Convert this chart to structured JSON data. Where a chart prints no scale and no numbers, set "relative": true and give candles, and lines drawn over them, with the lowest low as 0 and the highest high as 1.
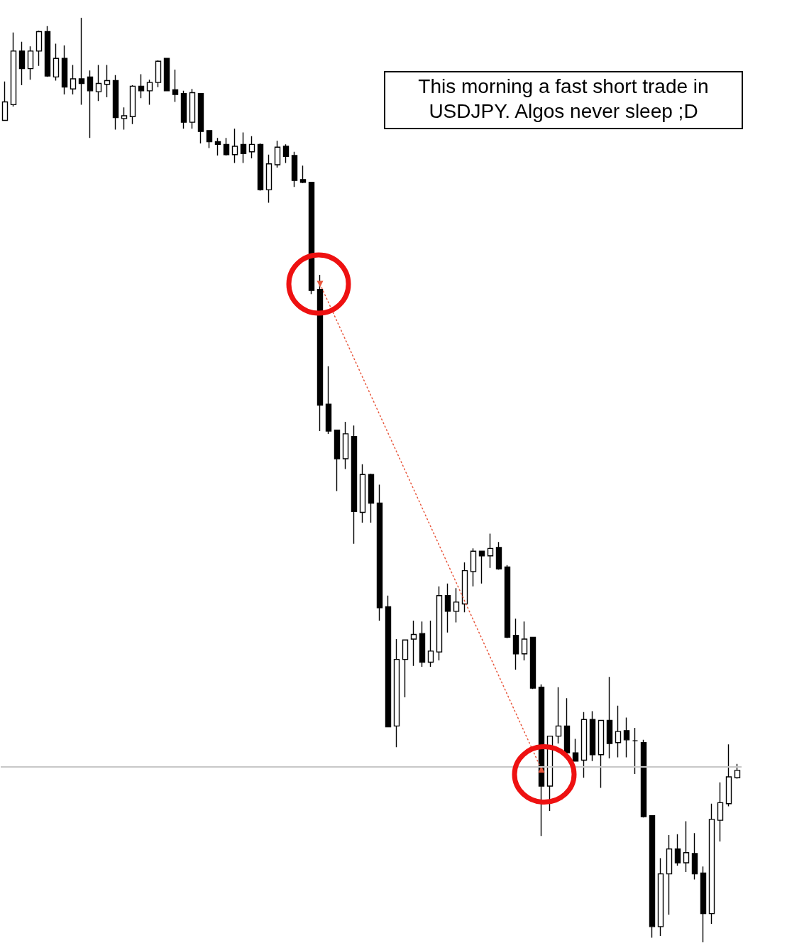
{
  "chart_data": {
    "type": "candlestick",
    "relative": true,
    "color": "#000000",
    "annotations": [
      "This morning a fast short trade in USDJPY. Algos never sleep ;D"
    ],
    "ref_lines": [
      {
        "axis": "y",
        "value": 0.187,
        "color": "#c8c8c8"
      }
    ],
    "series": [
      {
        "type": "line",
        "color": "#e8553a",
        "line_style": "dotted",
        "marker": "triangle",
        "values": [
          null,
          null,
          null,
          null,
          null,
          null,
          null,
          null,
          null,
          null,
          null,
          null,
          null,
          null,
          null,
          null,
          null,
          null,
          null,
          null,
          null,
          null,
          null,
          null,
          null,
          null,
          null,
          null,
          null,
          null,
          null,
          null,
          null,
          null,
          null,
          null,
          null,
          0.712,
          null,
          null,
          null,
          null,
          null,
          null,
          null,
          null,
          null,
          null,
          null,
          null,
          null,
          null,
          null,
          null,
          null,
          null,
          null,
          null,
          null,
          null,
          null,
          null,
          null,
          0.187,
          null,
          null,
          null,
          null,
          null,
          null,
          null,
          null,
          null,
          null,
          null,
          null,
          null,
          null,
          null,
          null,
          null,
          null,
          null,
          null,
          null,
          null,
          null
        ]
      }
    ],
    "categories": [
      null,
      null,
      null,
      null,
      null,
      null,
      null,
      null,
      null,
      null,
      null,
      null,
      null,
      null,
      null,
      null,
      null,
      null,
      null,
      null,
      null,
      null,
      null,
      null,
      null,
      null,
      null,
      null,
      null,
      null,
      null,
      null,
      null,
      null,
      null,
      null,
      null,
      null,
      null,
      null,
      null,
      null,
      null,
      null,
      null,
      null,
      null,
      null,
      null,
      null,
      null,
      null,
      null,
      null,
      null,
      null,
      null,
      null,
      null,
      null,
      null,
      null,
      null,
      null,
      null,
      null,
      null,
      null,
      null,
      null,
      null,
      null,
      null,
      null,
      null,
      null,
      null,
      null,
      null,
      null,
      null,
      null,
      null,
      null,
      null,
      null,
      null
    ],
    "ohlc": [
      [
        0.889,
        0.931,
        0.889,
        0.909
      ],
      [
        0.906,
        0.984,
        0.904,
        0.964
      ],
      [
        0.964,
        0.974,
        0.927,
        0.945
      ],
      [
        0.945,
        0.969,
        0.933,
        0.964
      ],
      [
        0.964,
        0.986,
        0.948,
        0.985
      ],
      [
        0.985,
        0.991,
        0.936,
        0.937
      ],
      [
        0.936,
        0.972,
        0.932,
        0.956
      ],
      [
        0.956,
        0.97,
        0.917,
        0.925
      ],
      [
        0.923,
        0.949,
        0.917,
        0.934
      ],
      [
        0.934,
        1,
        0.906,
        0.929
      ],
      [
        0.936,
        0.943,
        0.87,
        0.921
      ],
      [
        0.92,
        0.949,
        0.91,
        0.929
      ],
      [
        0.928,
        0.949,
        0.914,
        0.932
      ],
      [
        0.932,
        0.938,
        0.879,
        0.892
      ],
      [
        0.891,
        0.903,
        0.879,
        0.894
      ],
      [
        0.893,
        0.927,
        0.885,
        0.926
      ],
      [
        0.926,
        0.939,
        0.913,
        0.921
      ],
      [
        0.921,
        0.933,
        0.906,
        0.93
      ],
      [
        0.93,
        0.954,
        0.925,
        0.953
      ],
      [
        0.956,
        0.956,
        0.921,
        0.921
      ],
      [
        0.922,
        0.944,
        0.909,
        0.917
      ],
      [
        0.918,
        0.921,
        0.88,
        0.887
      ],
      [
        0.887,
        0.923,
        0.88,
        0.919
      ],
      [
        0.918,
        0.918,
        0.864,
        0.877
      ],
      [
        0.878,
        0.878,
        0.859,
        0.866
      ],
      [
        0.866,
        0.87,
        0.851,
        0.863
      ],
      [
        0.863,
        0.87,
        0.851,
        0.852
      ],
      [
        0.852,
        0.88,
        0.843,
        0.861
      ],
      [
        0.863,
        0.876,
        0.843,
        0.853
      ],
      [
        0.855,
        0.872,
        0.848,
        0.863
      ],
      [
        0.863,
        0.864,
        0.813,
        0.814
      ],
      [
        0.814,
        0.852,
        0.8,
        0.842
      ],
      [
        0.841,
        0.867,
        0.838,
        0.86
      ],
      [
        0.861,
        0.863,
        0.843,
        0.85
      ],
      [
        0.851,
        0.855,
        0.817,
        0.824
      ],
      [
        0.825,
        0.84,
        0.821,
        0.822
      ],
      [
        0.822,
        0.822,
        0.701,
        0.705
      ],
      [
        0.706,
        0.722,
        0.553,
        0.581
      ],
      [
        0.582,
        0.623,
        0.55,
        0.553
      ],
      [
        0.554,
        0.554,
        0.488,
        0.523
      ],
      [
        0.523,
        0.563,
        0.512,
        0.55
      ],
      [
        0.547,
        0.559,
        0.431,
        0.466
      ],
      [
        0.465,
        0.517,
        0.454,
        0.506
      ],
      [
        0.506,
        0.507,
        0.454,
        0.475
      ],
      [
        0.475,
        0.495,
        0.348,
        0.362
      ],
      [
        0.363,
        0.375,
        0.233,
        0.233
      ],
      [
        0.234,
        0.328,
        0.211,
        0.306
      ],
      [
        0.306,
        0.327,
        0.265,
        0.327
      ],
      [
        0.328,
        0.348,
        0.299,
        0.333
      ],
      [
        0.334,
        0.347,
        0.298,
        0.303
      ],
      [
        0.303,
        0.348,
        0.298,
        0.315
      ],
      [
        0.314,
        0.385,
        0.305,
        0.375
      ],
      [
        0.375,
        0.388,
        0.335,
        0.358
      ],
      [
        0.358,
        0.383,
        0.346,
        0.368
      ],
      [
        0.366,
        0.411,
        0.357,
        0.402
      ],
      [
        0.401,
        0.426,
        0.385,
        0.423
      ],
      [
        0.423,
        0.423,
        0.388,
        0.418
      ],
      [
        0.418,
        0.442,
        0.405,
        0.426
      ],
      [
        0.427,
        0.433,
        0.403,
        0.404
      ],
      [
        0.406,
        0.408,
        0.329,
        0.33
      ],
      [
        0.332,
        0.35,
        0.295,
        0.312
      ],
      [
        0.312,
        0.347,
        0.305,
        0.328
      ],
      [
        0.33,
        0.33,
        0.274,
        0.275
      ],
      [
        0.276,
        0.279,
        0.115,
        0.169
      ],
      [
        0.169,
        0.223,
        0.142,
        0.223
      ],
      [
        0.223,
        0.276,
        0.215,
        0.234
      ],
      [
        0.234,
        0.264,
        0.205,
        0.205
      ],
      [
        0.205,
        0.22,
        0.196,
        0.196
      ],
      [
        0.197,
        0.249,
        0.178,
        0.241
      ],
      [
        0.241,
        0.25,
        0.196,
        0.203
      ],
      [
        0.203,
        0.24,
        0.167,
        0.24
      ],
      [
        0.24,
        0.287,
        0.199,
        0.215
      ],
      [
        0.216,
        0.256,
        0.2,
        0.228
      ],
      [
        0.229,
        0.243,
        0.2,
        0.219
      ],
      [
        0.218,
        0.232,
        0.182,
        0.218
      ],
      [
        0.216,
        0.219,
        0.135,
        0.136
      ],
      [
        0.137,
        0.137,
        0.005,
        0.017
      ],
      [
        0.017,
        0.091,
        0.007,
        0.074
      ],
      [
        0.074,
        0.116,
        0.03,
        0.101
      ],
      [
        0.101,
        0.117,
        0.083,
        0.086
      ],
      [
        0.086,
        0.131,
        0.076,
        0.097
      ],
      [
        0.096,
        0.118,
        0.068,
        0.074
      ],
      [
        0.075,
        0.082,
        0,
        0.031
      ],
      [
        0.031,
        0.15,
        0.02,
        0.133
      ],
      [
        0.132,
        0.173,
        0.109,
        0.151
      ],
      [
        0.15,
        0.214,
        0.147,
        0.179
      ],
      [
        0.178,
        0.193,
        0.177,
        0.186
      ]
    ]
  }
}
